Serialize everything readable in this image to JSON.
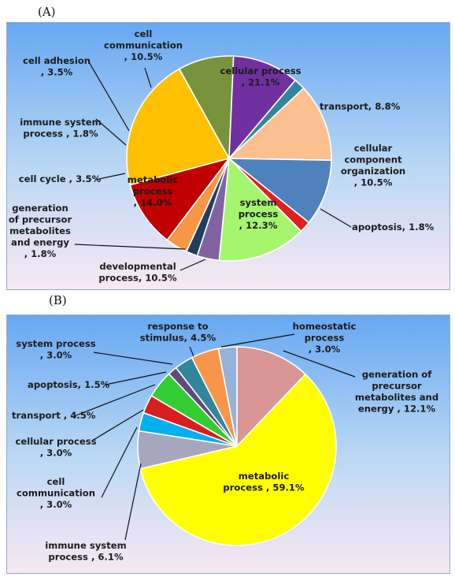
{
  "panels": {
    "a": {
      "label": "(A)"
    },
    "b": {
      "label": "(B)"
    }
  },
  "chart_data": [
    {
      "type": "pie",
      "panel": "(A)",
      "slices": [
        {
          "lines": [
            "cellular process",
            ", 21.1%"
          ],
          "value": 21.1,
          "color": "#FFC000"
        },
        {
          "lines": [
            "transport, 8.8%"
          ],
          "value": 8.8,
          "color": "#77933C"
        },
        {
          "lines": [
            "cellular",
            "component",
            "organization",
            ", 10.5%"
          ],
          "value": 10.5,
          "color": "#7030A0"
        },
        {
          "lines": [
            "apoptosis, 1.8%"
          ],
          "value": 1.8,
          "color": "#31859C"
        },
        {
          "lines": [
            "system",
            "process",
            ", 12.3%"
          ],
          "value": 12.3,
          "color": "#FAC090"
        },
        {
          "lines": [
            "developmental",
            "process, 10.5%"
          ],
          "value": 10.5,
          "color": "#4F81BD"
        },
        {
          "lines": [
            "generation",
            "of precursor",
            "metabolites",
            "and energy",
            ", 1.8%"
          ],
          "value": 1.8,
          "color": "#E01F1F"
        },
        {
          "lines": [
            "metabolic",
            "process",
            ", 14.0%"
          ],
          "value": 14.0,
          "color": "#A6F56F"
        },
        {
          "lines": [
            "cell cycle , 3.5%"
          ],
          "value": 3.5,
          "color": "#8064A2"
        },
        {
          "lines": [
            "immune system",
            "process , 1.8%"
          ],
          "value": 1.8,
          "color": "#1F3F5F"
        },
        {
          "lines": [
            "cell adhesion",
            ", 3.5%"
          ],
          "value": 3.5,
          "color": "#F79646"
        },
        {
          "lines": [
            "cell",
            "communication",
            ", 10.5%"
          ],
          "value": 10.5,
          "color": "#C00000"
        }
      ]
    },
    {
      "type": "pie",
      "panel": "(B)",
      "slices": [
        {
          "lines": [
            "generation of",
            "precursor",
            "metabolites and",
            "energy , 12.1%"
          ],
          "value": 12.1,
          "color": "#D99694"
        },
        {
          "lines": [
            "metabolic",
            "process , 59.1%"
          ],
          "value": 59.1,
          "color": "#FFFF00"
        },
        {
          "lines": [
            "immune system",
            "process , 6.1%"
          ],
          "value": 6.1,
          "color": "#A6A6BF"
        },
        {
          "lines": [
            "cell",
            "communication",
            ", 3.0%"
          ],
          "value": 3.0,
          "color": "#00B0F0"
        },
        {
          "lines": [
            "cellular process",
            ", 3.0%"
          ],
          "value": 3.0,
          "color": "#D81E1E"
        },
        {
          "lines": [
            "transport , 4.5%"
          ],
          "value": 4.5,
          "color": "#33CC33"
        },
        {
          "lines": [
            "apoptosis, 1.5%"
          ],
          "value": 1.5,
          "color": "#604A7B"
        },
        {
          "lines": [
            "system process",
            ", 3.0%"
          ],
          "value": 3.0,
          "color": "#31859C"
        },
        {
          "lines": [
            "response to",
            "stimulus, 4.5%"
          ],
          "value": 4.5,
          "color": "#F79646"
        },
        {
          "lines": [
            "homeostatic",
            "process",
            ", 3.0%"
          ],
          "value": 3.0,
          "color": "#95B3D7"
        }
      ]
    }
  ]
}
